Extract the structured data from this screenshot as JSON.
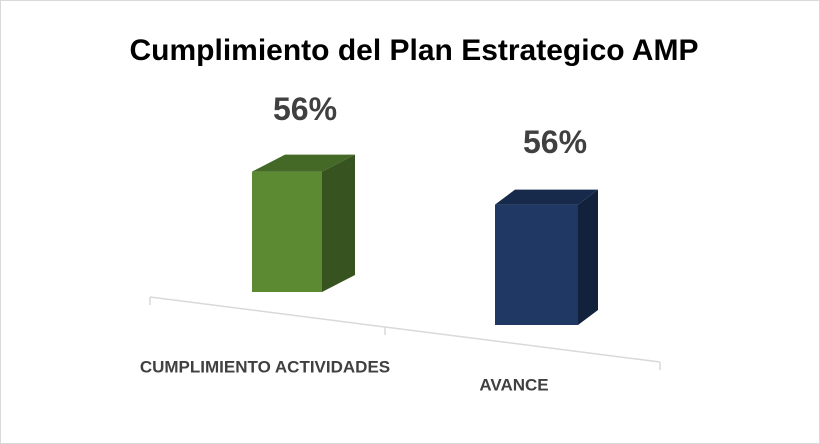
{
  "chart_data": {
    "type": "bar3d",
    "title": "Cumplimiento del Plan Estrategico AMP",
    "categories": [
      "CUMPLIMIENTO ACTIVIDADES",
      "AVANCE"
    ],
    "values": [
      56,
      56
    ],
    "value_labels": [
      "56%",
      "56%"
    ],
    "colors": [
      "#5b8a33",
      "#1f3864"
    ]
  }
}
